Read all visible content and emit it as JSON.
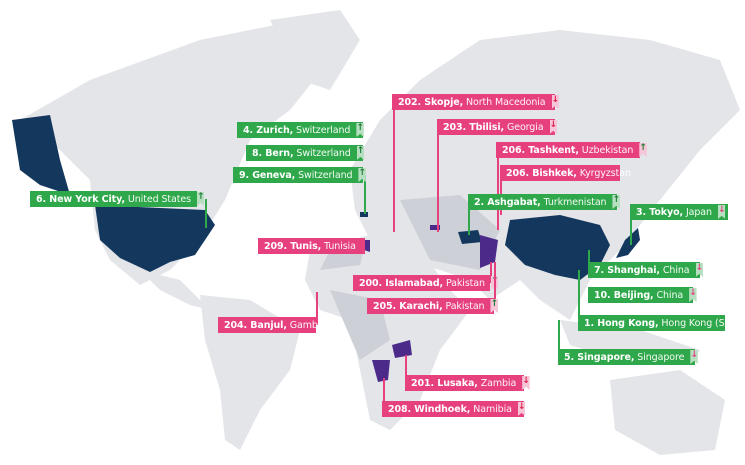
{
  "colors": {
    "green": "#2ea84a",
    "pink": "#e6407e",
    "highlight_top": "#14375e",
    "highlight_bottom": "#4b2a8a",
    "land": "#e3e5e9",
    "land_dark": "#cdd0d6"
  },
  "labels": [
    {
      "rank": "6.",
      "city": "New York City",
      "country": "United States",
      "group": "green",
      "trend": "up"
    },
    {
      "rank": "4.",
      "city": "Zurich",
      "country": "Switzerland",
      "group": "green",
      "trend": "up"
    },
    {
      "rank": "8.",
      "city": "Bern",
      "country": "Switzerland",
      "group": "green",
      "trend": "up"
    },
    {
      "rank": "9.",
      "city": "Geneva",
      "country": "Switzerland",
      "group": "green",
      "trend": "up"
    },
    {
      "rank": "202.",
      "city": "Skopje",
      "country": "North Macedonia",
      "group": "pink",
      "trend": "down"
    },
    {
      "rank": "203.",
      "city": "Tbilisi",
      "country": "Georgia",
      "group": "pink",
      "trend": "down"
    },
    {
      "rank": "206.",
      "city": "Tashkent",
      "country": "Uzbekistan",
      "group": "pink",
      "trend": "up"
    },
    {
      "rank": "206.",
      "city": "Bishkek",
      "country": "Kyrgyzstan",
      "group": "pink",
      "trend": "none"
    },
    {
      "rank": "2.",
      "city": "Ashgabat",
      "country": "Turkmenistan",
      "group": "green",
      "trend": "up"
    },
    {
      "rank": "3.",
      "city": "Tokyo",
      "country": "Japan",
      "group": "green",
      "trend": "down"
    },
    {
      "rank": "209.",
      "city": "Tunis",
      "country": "Tunisia",
      "group": "pink",
      "trend": "none"
    },
    {
      "rank": "200.",
      "city": "Islamabad",
      "country": "Pakistan",
      "group": "pink",
      "trend": "up"
    },
    {
      "rank": "205.",
      "city": "Karachi",
      "country": "Pakistan",
      "group": "pink",
      "trend": "up"
    },
    {
      "rank": "7.",
      "city": "Shanghai",
      "country": "China",
      "group": "green",
      "trend": "down"
    },
    {
      "rank": "10.",
      "city": "Beijing",
      "country": "China",
      "group": "green",
      "trend": "down"
    },
    {
      "rank": "204.",
      "city": "Banjul",
      "country": "Gambia",
      "group": "pink",
      "trend": "none"
    },
    {
      "rank": "1.",
      "city": "Hong Kong",
      "country": "Hong Kong (SAR)",
      "group": "green",
      "trend": "none"
    },
    {
      "rank": "5.",
      "city": "Singapore",
      "country": "Singapore",
      "group": "green",
      "trend": "down"
    },
    {
      "rank": "201.",
      "city": "Lusaka",
      "country": "Zambia",
      "group": "pink",
      "trend": "down"
    },
    {
      "rank": "208.",
      "city": "Windhoek",
      "country": "Namibia",
      "group": "pink",
      "trend": "down"
    }
  ]
}
